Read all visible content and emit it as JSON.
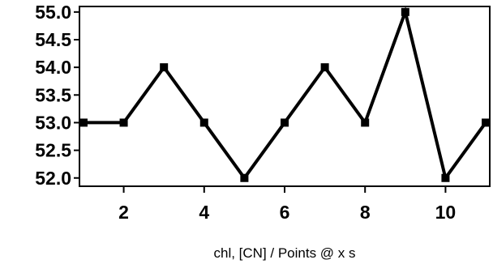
{
  "chart_data": {
    "type": "line",
    "title": "",
    "xlabel": "chl, [CN] / Points @ x s",
    "ylabel": "",
    "x": [
      1,
      2,
      3,
      4,
      5,
      6,
      7,
      8,
      9,
      10,
      11
    ],
    "series": [
      {
        "values": [
          53.0,
          53.0,
          54.0,
          53.0,
          52.0,
          53.0,
          54.0,
          53.0,
          55.0,
          52.0,
          53.0
        ]
      }
    ],
    "xlim": [
      0.9,
      11.1
    ],
    "ylim": [
      51.85,
      55.1
    ],
    "xticks": [
      2,
      4,
      6,
      8,
      10
    ],
    "xtick_labels": [
      "2",
      "4",
      "6",
      "8",
      "10"
    ],
    "yticks": [
      52.0,
      52.5,
      53.0,
      53.5,
      54.0,
      54.5,
      55.0
    ],
    "ytick_labels": [
      "52.0",
      "52.5",
      "53.0",
      "53.5",
      "54.0",
      "54.5",
      "55.0"
    ],
    "grid": false,
    "marker": "square",
    "line_color": "#000000",
    "marker_color": "#000000"
  }
}
